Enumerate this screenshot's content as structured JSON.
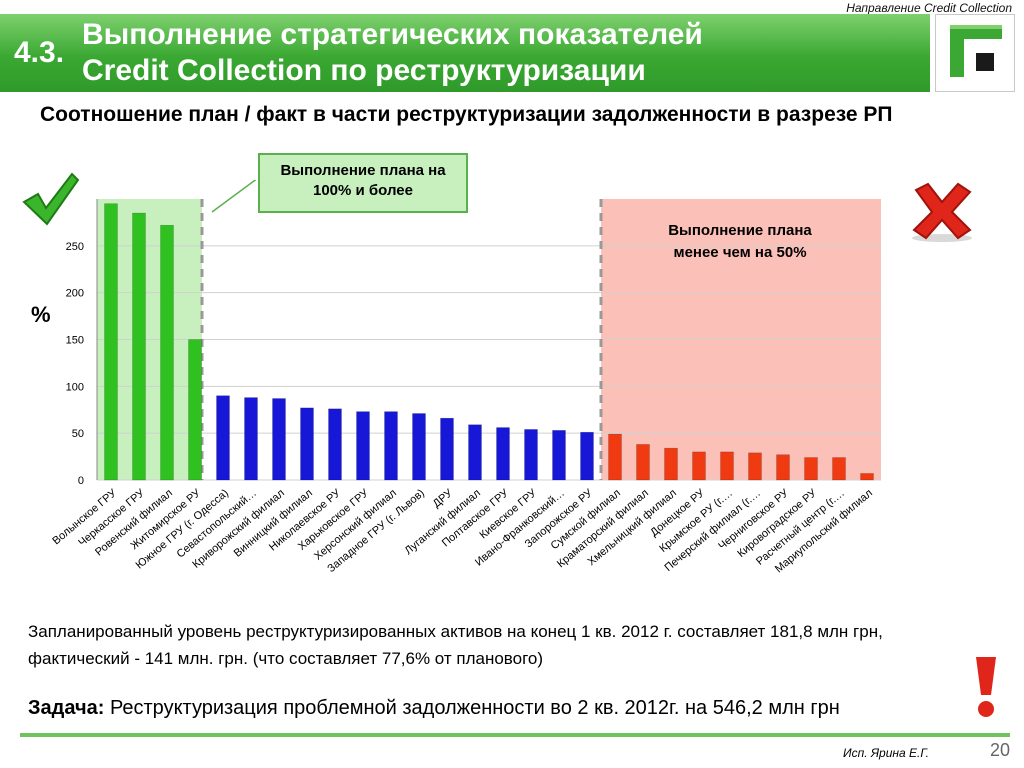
{
  "header": {
    "direction_note": "Направление Credit Collection",
    "section_number": "4.3.",
    "title_line1": "Выполнение стратегических показателей",
    "title_line2": "Credit Collection по реструктуризации"
  },
  "subtitle": "Соотношение план / факт в части реструктуризации задолженности в разрезе РП",
  "callouts": {
    "green": "Выполнение плана на 100% и более",
    "red": "Выполнение плана менее чем на 50%"
  },
  "percent_label": "%",
  "chart_data": {
    "type": "bar",
    "ylabel": "%",
    "ylim": [
      0,
      300
    ],
    "yticks": [
      0,
      50,
      100,
      150,
      200,
      250
    ],
    "grid": true,
    "categories": [
      "Волынское ГРУ",
      "Черкасское ГРУ",
      "Ровенский филиал",
      "Житомирское РУ",
      "Южное ГРУ (г. Одесса)",
      "Севастопольский…",
      "Криворожский филиал",
      "Винницкий филиал",
      "Николаевское РУ",
      "Харьковское ГРУ",
      "Херсонский филиал",
      "Западное ГРУ (г. Львов)",
      "ДРУ",
      "Луганский филиал",
      "Полтавское ГРУ",
      "Киевское ГРУ",
      "Ивано-Франковский…",
      "Запорожское РУ",
      "Сумской филиал",
      "Краматорский филиал",
      "Хмельницкий филиал",
      "Донецкое РУ",
      "Крымское РУ (г.…",
      "Печерский филиал (г.…",
      "Черниговское РУ",
      "Кировоградское РУ",
      "Расчетный центр (г.…",
      "Мариупольский филиал"
    ],
    "values": [
      295,
      285,
      272,
      150,
      90,
      88,
      87,
      77,
      76,
      73,
      73,
      71,
      66,
      59,
      56,
      54,
      53,
      51,
      49,
      38,
      34,
      30,
      30,
      29,
      27,
      24,
      24,
      7
    ],
    "groups": [
      {
        "name": "plan_met",
        "from": 0,
        "to": 3,
        "color": "#2fc11f"
      },
      {
        "name": "plan_partial",
        "from": 4,
        "to": 17,
        "color": "#1717d8"
      },
      {
        "name": "plan_low",
        "from": 18,
        "to": 27,
        "color": "#f03a12"
      }
    ]
  },
  "note": "Запланированный уровень реструктуризированных активов на конец 1 кв. 2012 г. составляет 181,8 млн грн, фактический -  141 млн. грн. (что составляет 77,6% от планового)",
  "task": {
    "label": "Задача:",
    "text": "Реструктуризация проблемной задолженности во 2 кв. 2012г. на 546,2 млн грн"
  },
  "footer": {
    "author": "Исп. Ярина Е.Г.",
    "page_number": "20"
  },
  "colors": {
    "header_green": "#3aa832",
    "red_zone": "#fbc1b8",
    "green_zone": "#c8f0bf",
    "accent_red": "#e0251a"
  },
  "icons": [
    "checkmark-icon",
    "cross-icon",
    "exclamation-icon",
    "bank-logo-icon"
  ]
}
